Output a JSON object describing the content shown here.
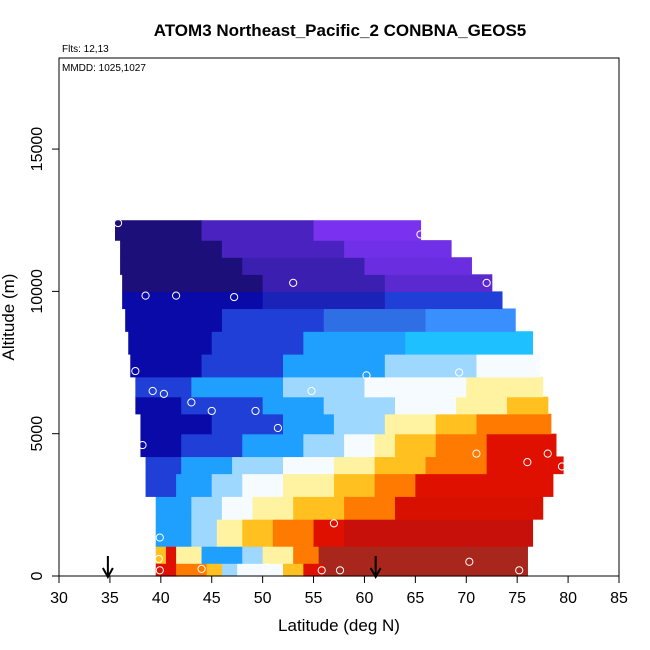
{
  "chart_data": {
    "type": "heatmap",
    "title": "ATOM3 Northeast_Pacific_2 CONBNA_GEOS5",
    "flights_label": "Flts: 12,13",
    "dates_label": "MMDD: 1025,1027",
    "xlabel": "Latitude (deg N)",
    "ylabel": "Altitude (m)",
    "xlim": [
      30,
      85
    ],
    "ylim": [
      0,
      18200
    ],
    "xticks": [
      "30",
      "35",
      "40",
      "45",
      "50",
      "55",
      "60",
      "65",
      "70",
      "75",
      "80",
      "85"
    ],
    "yticks": [
      "0",
      "5000",
      "10000",
      "15000"
    ],
    "grid": false,
    "legend": "none",
    "arrow_markers_lat": [
      34.8,
      61.1
    ],
    "colorscale": [
      "#1d0f7a",
      "#0a0aa8",
      "#1f3fd6",
      "#1fa0ff",
      "#9fd8ff",
      "#f6fbff",
      "#fff2a0",
      "#ffc020",
      "#ff7a00",
      "#e01000",
      "#a8261c"
    ],
    "curtain_rows": [
      {
        "alt": [
          0,
          450
        ],
        "lat_range": [
          39.5,
          76
        ],
        "segments": [
          {
            "lat": [
              39.5,
              41.5
            ],
            "c": "#e01000"
          },
          {
            "lat": [
              41.5,
              44.5
            ],
            "c": "#ff7a00"
          },
          {
            "lat": [
              44.5,
              46
            ],
            "c": "#ffc020"
          },
          {
            "lat": [
              46,
              47.5
            ],
            "c": "#9fd8ff"
          },
          {
            "lat": [
              47.5,
              52
            ],
            "c": "#f6fbff"
          },
          {
            "lat": [
              52,
              54
            ],
            "c": "#ffc020"
          },
          {
            "lat": [
              54,
              56
            ],
            "c": "#e01000"
          },
          {
            "lat": [
              56,
              76
            ],
            "c": "#a8261c"
          }
        ]
      },
      {
        "alt": [
          450,
          1050
        ],
        "lat_range": [
          39.5,
          76
        ],
        "segments": [
          {
            "lat": [
              39.5,
              40.5
            ],
            "c": "#ffc020"
          },
          {
            "lat": [
              40.5,
              41.5
            ],
            "c": "#e01000"
          },
          {
            "lat": [
              41.5,
              44
            ],
            "c": "#fff2a0"
          },
          {
            "lat": [
              44,
              48
            ],
            "c": "#1fa0ff"
          },
          {
            "lat": [
              48,
              50
            ],
            "c": "#9fd8ff"
          },
          {
            "lat": [
              50,
              53
            ],
            "c": "#fff2a0"
          },
          {
            "lat": [
              53,
              55.5
            ],
            "c": "#ff7a00"
          },
          {
            "lat": [
              55.5,
              76
            ],
            "c": "#a8261c"
          }
        ]
      },
      {
        "alt": [
          1050,
          2000
        ],
        "lat_range": [
          39.5,
          76.5
        ],
        "segments": [
          {
            "lat": [
              39.5,
              43
            ],
            "c": "#1fa0ff"
          },
          {
            "lat": [
              43,
              45.5
            ],
            "c": "#9fd8ff"
          },
          {
            "lat": [
              45.5,
              48
            ],
            "c": "#fff2a0"
          },
          {
            "lat": [
              48,
              51
            ],
            "c": "#ffc020"
          },
          {
            "lat": [
              51,
              55
            ],
            "c": "#ff7a00"
          },
          {
            "lat": [
              55,
              58
            ],
            "c": "#e01000"
          },
          {
            "lat": [
              58,
              76.5
            ],
            "c": "#c8100a"
          }
        ]
      },
      {
        "alt": [
          2000,
          2800
        ],
        "lat_range": [
          39.5,
          77.5
        ],
        "segments": [
          {
            "lat": [
              39.5,
              43
            ],
            "c": "#1fa0ff"
          },
          {
            "lat": [
              43,
              46
            ],
            "c": "#9fd8ff"
          },
          {
            "lat": [
              46,
              49
            ],
            "c": "#f6fbff"
          },
          {
            "lat": [
              49,
              53
            ],
            "c": "#fff2a0"
          },
          {
            "lat": [
              53,
              58
            ],
            "c": "#ffc020"
          },
          {
            "lat": [
              58,
              63
            ],
            "c": "#ff7a00"
          },
          {
            "lat": [
              63,
              77.5
            ],
            "c": "#d81000"
          }
        ]
      },
      {
        "alt": [
          2800,
          3600
        ],
        "lat_range": [
          38.5,
          78.5
        ],
        "segments": [
          {
            "lat": [
              38.5,
              41.5
            ],
            "c": "#1f3fd6"
          },
          {
            "lat": [
              41.5,
              45
            ],
            "c": "#1fa0ff"
          },
          {
            "lat": [
              45,
              48
            ],
            "c": "#9fd8ff"
          },
          {
            "lat": [
              48,
              52
            ],
            "c": "#f6fbff"
          },
          {
            "lat": [
              52,
              57
            ],
            "c": "#fff2a0"
          },
          {
            "lat": [
              57,
              61
            ],
            "c": "#ffc020"
          },
          {
            "lat": [
              61,
              65
            ],
            "c": "#ff7a00"
          },
          {
            "lat": [
              65,
              78.5
            ],
            "c": "#e01000"
          }
        ]
      },
      {
        "alt": [
          3600,
          4200
        ],
        "lat_range": [
          38.5,
          79.5
        ],
        "segments": [
          {
            "lat": [
              38.5,
              42
            ],
            "c": "#1f3fd6"
          },
          {
            "lat": [
              42,
              47
            ],
            "c": "#1fa0ff"
          },
          {
            "lat": [
              47,
              52
            ],
            "c": "#9fd8ff"
          },
          {
            "lat": [
              52,
              57
            ],
            "c": "#f6fbff"
          },
          {
            "lat": [
              57,
              61
            ],
            "c": "#fff2a0"
          },
          {
            "lat": [
              61,
              66
            ],
            "c": "#ffc020"
          },
          {
            "lat": [
              66,
              72
            ],
            "c": "#ff7a00"
          },
          {
            "lat": [
              72,
              79.5
            ],
            "c": "#e01000"
          }
        ]
      },
      {
        "alt": [
          4200,
          5000
        ],
        "lat_range": [
          38,
          78.8
        ],
        "segments": [
          {
            "lat": [
              38,
              42
            ],
            "c": "#0a0aa8"
          },
          {
            "lat": [
              42,
              48
            ],
            "c": "#1f3fd6"
          },
          {
            "lat": [
              48,
              54
            ],
            "c": "#1fa0ff"
          },
          {
            "lat": [
              54,
              58
            ],
            "c": "#9fd8ff"
          },
          {
            "lat": [
              58,
              61
            ],
            "c": "#f6fbff"
          },
          {
            "lat": [
              61,
              63
            ],
            "c": "#fff2a0"
          },
          {
            "lat": [
              63,
              67
            ],
            "c": "#ffc020"
          },
          {
            "lat": [
              67,
              72
            ],
            "c": "#ff7a00"
          },
          {
            "lat": [
              72,
              78.8
            ],
            "c": "#e01000"
          }
        ]
      },
      {
        "alt": [
          5000,
          5700
        ],
        "lat_range": [
          38,
          78.3
        ],
        "segments": [
          {
            "lat": [
              38,
              45
            ],
            "c": "#0a0aa8"
          },
          {
            "lat": [
              45,
              52
            ],
            "c": "#1f3fd6"
          },
          {
            "lat": [
              52,
              57
            ],
            "c": "#1fa0ff"
          },
          {
            "lat": [
              57,
              62
            ],
            "c": "#9fd8ff"
          },
          {
            "lat": [
              62,
              67
            ],
            "c": "#fff2a0"
          },
          {
            "lat": [
              67,
              71
            ],
            "c": "#ffc020"
          },
          {
            "lat": [
              71,
              78.3
            ],
            "c": "#ff7a00"
          }
        ]
      },
      {
        "alt": [
          5700,
          6300
        ],
        "lat_range": [
          37.5,
          78
        ],
        "segments": [
          {
            "lat": [
              37.5,
              42
            ],
            "c": "#0a0aa8"
          },
          {
            "lat": [
              42,
              50
            ],
            "c": "#1f3fd6"
          },
          {
            "lat": [
              50,
              56
            ],
            "c": "#1fa0ff"
          },
          {
            "lat": [
              56,
              63
            ],
            "c": "#9fd8ff"
          },
          {
            "lat": [
              63,
              69
            ],
            "c": "#f6fbff"
          },
          {
            "lat": [
              69,
              74
            ],
            "c": "#fff2a0"
          },
          {
            "lat": [
              74,
              78
            ],
            "c": "#ffc020"
          }
        ]
      },
      {
        "alt": [
          6300,
          7000
        ],
        "lat_range": [
          37.5,
          77.5
        ],
        "segments": [
          {
            "lat": [
              37.5,
              43
            ],
            "c": "#1f3fd6"
          },
          {
            "lat": [
              43,
              52
            ],
            "c": "#1fa0ff"
          },
          {
            "lat": [
              52,
              60
            ],
            "c": "#9fd8ff"
          },
          {
            "lat": [
              60,
              70
            ],
            "c": "#f6fbff"
          },
          {
            "lat": [
              70,
              77.5
            ],
            "c": "#fff2a0"
          }
        ]
      },
      {
        "alt": [
          7000,
          7800
        ],
        "lat_range": [
          37,
          77.2
        ],
        "segments": [
          {
            "lat": [
              37,
              44
            ],
            "c": "#0a0aa8"
          },
          {
            "lat": [
              44,
              52
            ],
            "c": "#1f3fd6"
          },
          {
            "lat": [
              52,
              62
            ],
            "c": "#1fa0ff"
          },
          {
            "lat": [
              62,
              71
            ],
            "c": "#9fd8ff"
          },
          {
            "lat": [
              71,
              77.2
            ],
            "c": "#f6fbff"
          }
        ]
      },
      {
        "alt": [
          7800,
          8600
        ],
        "lat_range": [
          36.8,
          76.5
        ],
        "segments": [
          {
            "lat": [
              36.8,
              45
            ],
            "c": "#0a0aa8"
          },
          {
            "lat": [
              45,
              54
            ],
            "c": "#1f3fd6"
          },
          {
            "lat": [
              54,
              64
            ],
            "c": "#1fa0ff"
          },
          {
            "lat": [
              64,
              76.5
            ],
            "c": "#1fc0ff"
          }
        ]
      },
      {
        "alt": [
          8600,
          9400
        ],
        "lat_range": [
          36.5,
          74.8
        ],
        "segments": [
          {
            "lat": [
              36.5,
              46
            ],
            "c": "#0a0aa8"
          },
          {
            "lat": [
              46,
              56
            ],
            "c": "#1f3fd6"
          },
          {
            "lat": [
              56,
              66
            ],
            "c": "#2f6fe6"
          },
          {
            "lat": [
              66,
              74.8
            ],
            "c": "#3a8fff"
          }
        ]
      },
      {
        "alt": [
          9400,
          10000
        ],
        "lat_range": [
          36.2,
          73.5
        ],
        "segments": [
          {
            "lat": [
              36.2,
              50
            ],
            "c": "#0a0aa8"
          },
          {
            "lat": [
              50,
              62
            ],
            "c": "#1a22b8"
          },
          {
            "lat": [
              62,
              73.5
            ],
            "c": "#1f3fd6"
          }
        ]
      },
      {
        "alt": [
          10000,
          10600
        ],
        "lat_range": [
          36.2,
          72.5
        ],
        "segments": [
          {
            "lat": [
              36.2,
              50
            ],
            "c": "#1d0f7a"
          },
          {
            "lat": [
              50,
              62
            ],
            "c": "#3a1fb0"
          },
          {
            "lat": [
              62,
              72.5
            ],
            "c": "#5a2ad0"
          }
        ]
      },
      {
        "alt": [
          10600,
          11200
        ],
        "lat_range": [
          36,
          70.5
        ],
        "segments": [
          {
            "lat": [
              36,
              48
            ],
            "c": "#1d0f7a"
          },
          {
            "lat": [
              48,
              60
            ],
            "c": "#3a1fb0"
          },
          {
            "lat": [
              60,
              70.5
            ],
            "c": "#6a2ee0"
          }
        ]
      },
      {
        "alt": [
          11200,
          11800
        ],
        "lat_range": [
          36,
          68.5
        ],
        "segments": [
          {
            "lat": [
              36,
              46
            ],
            "c": "#1d0f7a"
          },
          {
            "lat": [
              46,
              58
            ],
            "c": "#4a22c0"
          },
          {
            "lat": [
              58,
              68.5
            ],
            "c": "#7030e8"
          }
        ]
      },
      {
        "alt": [
          11800,
          12500
        ],
        "lat_range": [
          35.5,
          65.5
        ],
        "segments": [
          {
            "lat": [
              35.5,
              44
            ],
            "c": "#1d0f7a"
          },
          {
            "lat": [
              44,
              55
            ],
            "c": "#4a22c0"
          },
          {
            "lat": [
              55,
              65.5
            ],
            "c": "#7a32f0"
          }
        ]
      }
    ],
    "sample_points": [
      [
        35.8,
        12400
      ],
      [
        65.5,
        12000
      ],
      [
        38.5,
        9850
      ],
      [
        41.5,
        9850
      ],
      [
        47.2,
        9800
      ],
      [
        53,
        10300
      ],
      [
        72,
        10300
      ],
      [
        37.5,
        7200
      ],
      [
        39.2,
        6500
      ],
      [
        40.3,
        6400
      ],
      [
        43,
        6100
      ],
      [
        45,
        5800
      ],
      [
        49.3,
        5800
      ],
      [
        51.5,
        5200
      ],
      [
        54.8,
        6500
      ],
      [
        60.2,
        7050
      ],
      [
        69.3,
        7150
      ],
      [
        77.2,
        7350
      ],
      [
        38.2,
        4600
      ],
      [
        71,
        4300
      ],
      [
        76,
        4000
      ],
      [
        78,
        4300
      ],
      [
        79.4,
        3850
      ],
      [
        57,
        1850
      ],
      [
        39.9,
        1350
      ],
      [
        39.8,
        600
      ],
      [
        39.9,
        200
      ],
      [
        44,
        250
      ],
      [
        50.4,
        300
      ],
      [
        55.8,
        200
      ],
      [
        57.6,
        200
      ],
      [
        70.3,
        500
      ],
      [
        75.2,
        200
      ]
    ]
  }
}
